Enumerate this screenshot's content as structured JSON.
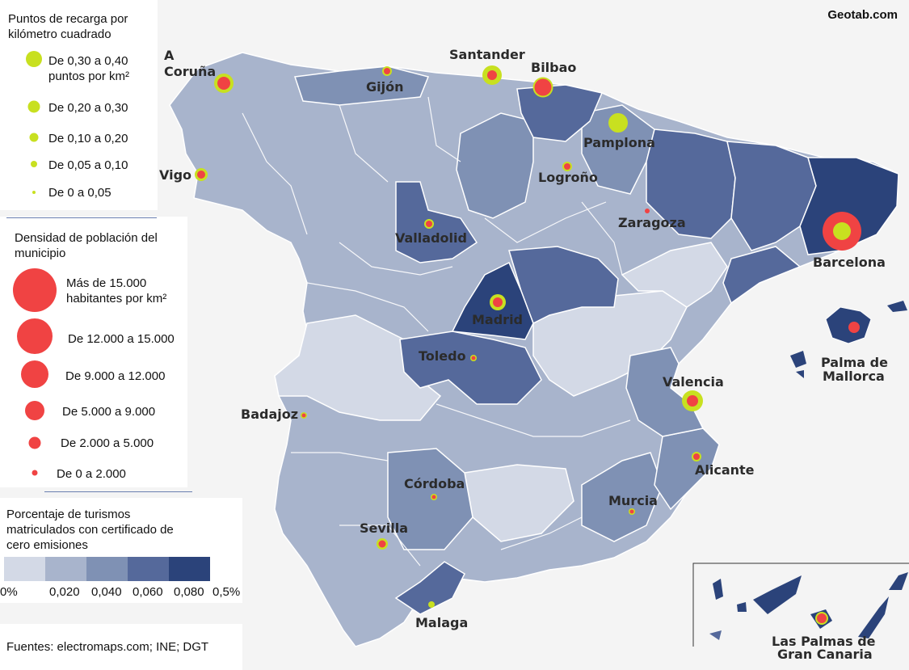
{
  "brand": "Geotab.com",
  "source": "Fuentes: electromaps.com; INE; DGT",
  "legend_chargers": {
    "title": "Puntos de recarga por kilómetro cuadrado",
    "items": [
      "De 0,30 a 0,40 puntos por km²",
      "De 0,20 a 0,30",
      "De 0,10 a 0,20",
      "De 0,05 a 0,10",
      "De 0 a 0,05"
    ],
    "color": "#c8e020"
  },
  "legend_density": {
    "title": "Densidad de población del municipio",
    "items": [
      "Más de 15.000 habitantes por km²",
      "De 12.000 a 15.000",
      "De 9.000 a 12.000",
      "De 5.000 a 9.000",
      "De 2.000 a 5.000",
      "De 0 a 2.000"
    ],
    "color": "#f04343"
  },
  "legend_zero": {
    "title": "Porcentaje de turismos matriculados con certificado de cero emisiones",
    "ticks": [
      "0%",
      "0,020",
      "0,040",
      "0,060",
      "0,080",
      "0,5%"
    ],
    "colors": [
      "#d3d9e6",
      "#a8b4cc",
      "#7f91b4",
      "#55699b",
      "#2b437a"
    ]
  },
  "cities": [
    {
      "name": "A Coruña",
      "lines": [
        "A",
        "Coruña"
      ]
    },
    {
      "name": "Gijón"
    },
    {
      "name": "Santander"
    },
    {
      "name": "Bilbao"
    },
    {
      "name": "Pamplona"
    },
    {
      "name": "Vigo"
    },
    {
      "name": "Logroño"
    },
    {
      "name": "Zaragoza"
    },
    {
      "name": "Valladolid"
    },
    {
      "name": "Barcelona"
    },
    {
      "name": "Madrid"
    },
    {
      "name": "Toledo"
    },
    {
      "name": "Palma de Mallorca",
      "lines": [
        "Palma de",
        "Mallorca"
      ]
    },
    {
      "name": "Valencia"
    },
    {
      "name": "Badajoz"
    },
    {
      "name": "Alicante"
    },
    {
      "name": "Córdoba"
    },
    {
      "name": "Murcia"
    },
    {
      "name": "Sevilla"
    },
    {
      "name": "Malaga"
    },
    {
      "name": "Las Palmas de Gran Canaria",
      "lines": [
        "Las Palmas de",
        "Gran Canaria"
      ]
    }
  ]
}
